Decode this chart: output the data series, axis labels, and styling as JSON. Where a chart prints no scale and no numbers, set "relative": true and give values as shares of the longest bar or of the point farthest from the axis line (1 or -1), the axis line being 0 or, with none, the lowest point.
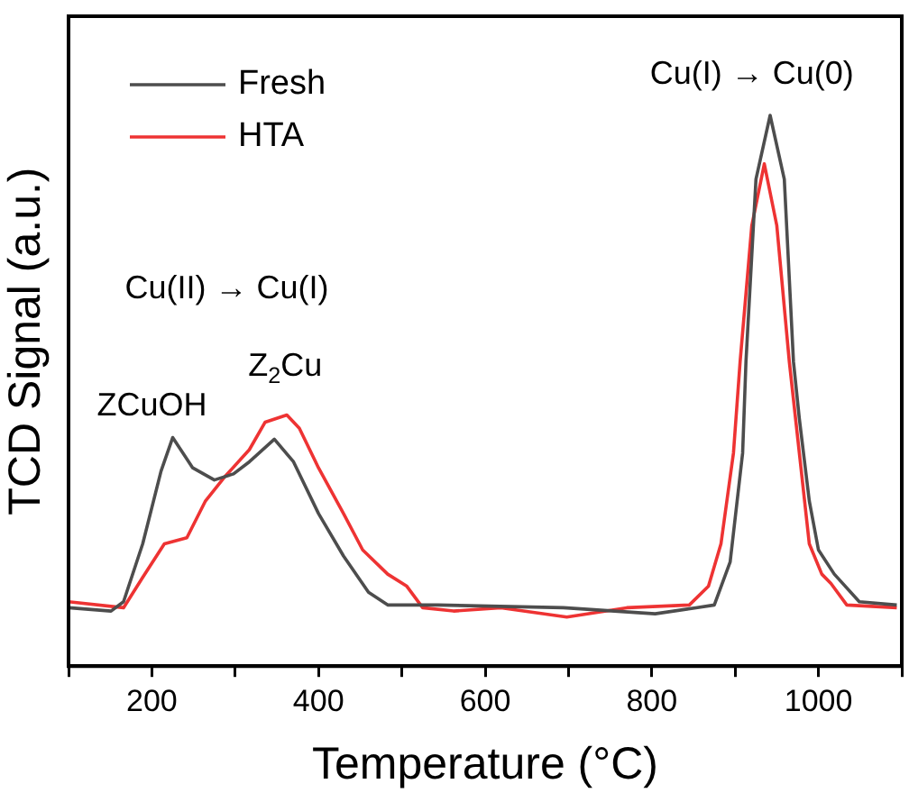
{
  "chart_data": {
    "type": "line",
    "xlabel": "Temperature (°C)",
    "ylabel": "TCD Signal (a.u.)",
    "relative": true,
    "tick_labels": "x",
    "grid": false,
    "legend": "top left",
    "marker": "none",
    "line_style": "solid",
    "xlim": [
      100,
      1100
    ],
    "xticks": [
      {
        "value": 100,
        "label": null
      },
      200,
      {
        "value": 300,
        "label": null
      },
      400,
      {
        "value": 500,
        "label": null
      },
      600,
      {
        "value": 700,
        "label": null
      },
      800,
      {
        "value": 900,
        "label": null
      },
      1000,
      {
        "value": 1100,
        "label": null
      }
    ],
    "series": [
      {
        "name": "Fresh",
        "color": "#4d4d4d",
        "x": [
          100,
          151,
          166,
          189,
          211,
          225,
          249,
          275,
          298,
          317,
          347,
          370,
          400,
          430,
          460,
          483,
          543,
          694,
          804,
          853,
          875,
          894,
          909,
          913,
          925,
          942,
          959,
          970,
          977,
          989,
          1000,
          1019,
          1049,
          1094
        ],
        "values": [
          0.106,
          0.1,
          0.117,
          0.222,
          0.354,
          0.415,
          0.36,
          0.338,
          0.349,
          0.371,
          0.412,
          0.371,
          0.277,
          0.2,
          0.134,
          0.111,
          0.111,
          0.106,
          0.095,
          0.106,
          0.111,
          0.189,
          0.387,
          0.553,
          0.884,
          1,
          0.884,
          0.553,
          0.45,
          0.3,
          0.211,
          0.167,
          0.117,
          0.111
        ]
      },
      {
        "name": "HTA",
        "color": "#ee3333",
        "x": [
          100,
          166,
          189,
          215,
          242,
          264,
          287,
          317,
          336,
          362,
          377,
          400,
          430,
          453,
          483,
          506,
          525,
          562,
          619,
          698,
          770,
          845,
          868,
          883,
          898,
          906,
          920,
          935,
          950,
          965,
          989,
          1004,
          1015,
          1034,
          1094
        ],
        "values": [
          0.117,
          0.106,
          0.161,
          0.222,
          0.233,
          0.299,
          0.343,
          0.393,
          0.443,
          0.456,
          0.432,
          0.36,
          0.277,
          0.211,
          0.167,
          0.145,
          0.106,
          0.1,
          0.106,
          0.089,
          0.106,
          0.111,
          0.145,
          0.222,
          0.387,
          0.553,
          0.8,
          0.912,
          0.8,
          0.553,
          0.222,
          0.167,
          0.15,
          0.111,
          0.106
        ]
      }
    ],
    "annotations": [
      "ZCuOH",
      "Z$_{2}$Cu",
      "Cu(II) → Cu(I)",
      "Cu(I) → Cu(0)"
    ]
  }
}
